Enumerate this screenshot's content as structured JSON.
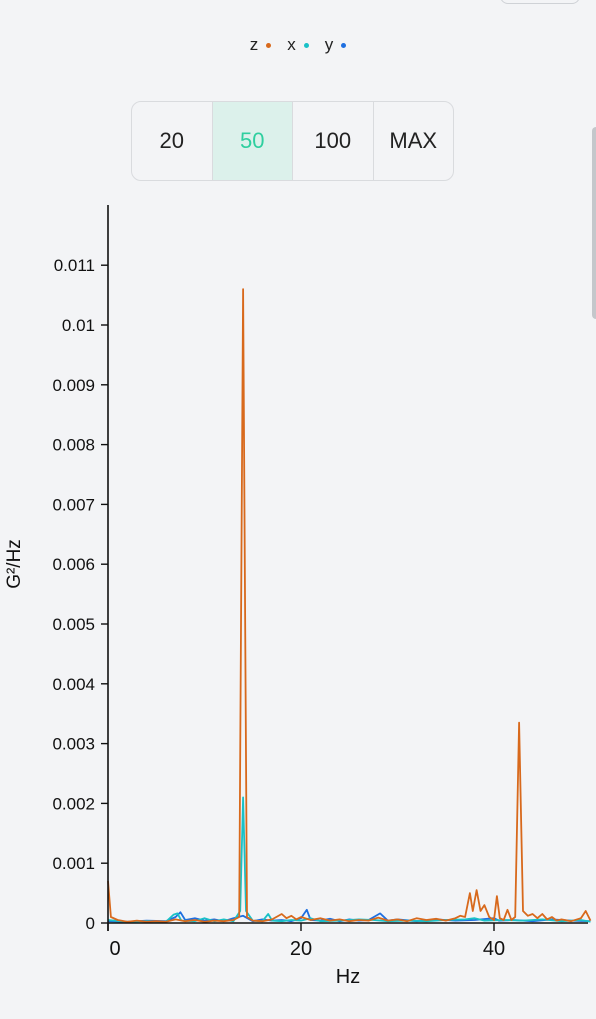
{
  "legend": [
    {
      "label": "z",
      "color": "#d8691c"
    },
    {
      "label": "x",
      "color": "#19c1c7"
    },
    {
      "label": "y",
      "color": "#1e6fe0"
    }
  ],
  "range_selector": {
    "options": [
      "20",
      "50",
      "100",
      "MAX"
    ],
    "selected": "50"
  },
  "chart_data": {
    "type": "line",
    "title": "",
    "xlabel": "Hz",
    "ylabel": "G²/Hz",
    "xlim": [
      0,
      50
    ],
    "ylim": [
      0,
      0.0117
    ],
    "xticks": [
      "0",
      "20",
      "40"
    ],
    "yticks": [
      "0",
      "0.001",
      "0.002",
      "0.003",
      "0.004",
      "0.005",
      "0.006",
      "0.007",
      "0.008",
      "0.009",
      "0.01",
      "0.011"
    ],
    "series": [
      {
        "name": "z",
        "color": "#d8691c",
        "points": [
          [
            0,
            0.0007
          ],
          [
            0.3,
            0.0001
          ],
          [
            1,
            5e-05
          ],
          [
            2,
            2e-05
          ],
          [
            3,
            4e-05
          ],
          [
            4,
            2e-05
          ],
          [
            5,
            3e-05
          ],
          [
            6,
            2e-05
          ],
          [
            7,
            6e-05
          ],
          [
            8,
            3e-05
          ],
          [
            9,
            5e-05
          ],
          [
            10,
            2e-05
          ],
          [
            11,
            4e-05
          ],
          [
            12,
            3e-05
          ],
          [
            13,
            5e-05
          ],
          [
            13.6,
            0.0001
          ],
          [
            14.0,
            0.0106
          ],
          [
            14.4,
            0.0001
          ],
          [
            15,
            4e-05
          ],
          [
            16,
            3e-05
          ],
          [
            17,
            6e-05
          ],
          [
            18,
            0.00015
          ],
          [
            18.5,
            8e-05
          ],
          [
            19,
            0.00012
          ],
          [
            19.5,
            6e-05
          ],
          [
            20,
            0.0001
          ],
          [
            21,
            5e-05
          ],
          [
            22,
            8e-05
          ],
          [
            23,
            4e-05
          ],
          [
            24,
            6e-05
          ],
          [
            25,
            3e-05
          ],
          [
            26,
            5e-05
          ],
          [
            27,
            4e-05
          ],
          [
            28,
            9e-05
          ],
          [
            29,
            4e-05
          ],
          [
            30,
            6e-05
          ],
          [
            31,
            3e-05
          ],
          [
            32,
            8e-05
          ],
          [
            33,
            5e-05
          ],
          [
            34,
            7e-05
          ],
          [
            35,
            4e-05
          ],
          [
            36,
            8e-05
          ],
          [
            36.5,
            0.00012
          ],
          [
            37,
            0.0001
          ],
          [
            37.5,
            0.0005
          ],
          [
            37.8,
            0.0002
          ],
          [
            38.2,
            0.00055
          ],
          [
            38.6,
            0.0002
          ],
          [
            39,
            0.0003
          ],
          [
            39.5,
            0.0001
          ],
          [
            40,
            5e-05
          ],
          [
            40.3,
            0.00045
          ],
          [
            40.6,
            8e-05
          ],
          [
            41,
            5e-05
          ],
          [
            41.4,
            0.00022
          ],
          [
            41.8,
            5e-05
          ],
          [
            42.2,
            0.0001
          ],
          [
            42.6,
            0.00335
          ],
          [
            43,
            0.0002
          ],
          [
            43.5,
            0.00012
          ],
          [
            44,
            0.00015
          ],
          [
            44.5,
            8e-05
          ],
          [
            45,
            0.00015
          ],
          [
            45.5,
            6e-05
          ],
          [
            46,
            0.0001
          ],
          [
            46.5,
            4e-05
          ],
          [
            47,
            6e-05
          ],
          [
            48,
            3e-05
          ],
          [
            49,
            8e-05
          ],
          [
            49.5,
            0.0002
          ],
          [
            50,
            4e-05
          ]
        ]
      },
      {
        "name": "x",
        "color": "#19c1c7",
        "points": [
          [
            0,
            5e-05
          ],
          [
            2,
            2e-05
          ],
          [
            4,
            3e-05
          ],
          [
            6,
            2e-05
          ],
          [
            6.8,
            0.00014
          ],
          [
            7.2,
            0.00016
          ],
          [
            7.6,
            4e-05
          ],
          [
            9,
            3e-05
          ],
          [
            10,
            8e-05
          ],
          [
            11,
            3e-05
          ],
          [
            12,
            6e-05
          ],
          [
            13,
            3e-05
          ],
          [
            13.7,
            0.0002
          ],
          [
            14.0,
            0.0021
          ],
          [
            14.3,
            0.0002
          ],
          [
            15,
            4e-05
          ],
          [
            16,
            3e-05
          ],
          [
            16.6,
            0.00015
          ],
          [
            17,
            4e-05
          ],
          [
            18,
            3e-05
          ],
          [
            19,
            5e-05
          ],
          [
            20,
            4e-05
          ],
          [
            21,
            8e-05
          ],
          [
            22,
            3e-05
          ],
          [
            24,
            4e-05
          ],
          [
            26,
            6e-05
          ],
          [
            27.5,
            5e-05
          ],
          [
            29,
            3e-05
          ],
          [
            31,
            4e-05
          ],
          [
            33,
            3e-05
          ],
          [
            35,
            5e-05
          ],
          [
            37,
            6e-05
          ],
          [
            38,
            8e-05
          ],
          [
            39,
            4e-05
          ],
          [
            41,
            5e-05
          ],
          [
            43,
            4e-05
          ],
          [
            45,
            6e-05
          ],
          [
            47,
            3e-05
          ],
          [
            49,
            5e-05
          ],
          [
            50,
            2e-05
          ]
        ]
      },
      {
        "name": "y",
        "color": "#1e6fe0",
        "points": [
          [
            0,
            3e-05
          ],
          [
            2,
            2e-05
          ],
          [
            4,
            4e-05
          ],
          [
            6,
            3e-05
          ],
          [
            7,
            0.0001
          ],
          [
            7.5,
            0.00018
          ],
          [
            8,
            5e-05
          ],
          [
            9,
            8e-05
          ],
          [
            10,
            4e-05
          ],
          [
            11,
            6e-05
          ],
          [
            12,
            3e-05
          ],
          [
            13,
            8e-05
          ],
          [
            14,
            0.00012
          ],
          [
            15,
            3e-05
          ],
          [
            16,
            6e-05
          ],
          [
            17,
            4e-05
          ],
          [
            18,
            5e-05
          ],
          [
            19,
            3e-05
          ],
          [
            20,
            8e-05
          ],
          [
            20.6,
            0.00022
          ],
          [
            21,
            5e-05
          ],
          [
            22,
            4e-05
          ],
          [
            23,
            7e-05
          ],
          [
            24,
            3e-05
          ],
          [
            25,
            6e-05
          ],
          [
            26,
            4e-05
          ],
          [
            27,
            5e-05
          ],
          [
            28.2,
            0.00016
          ],
          [
            29,
            4e-05
          ],
          [
            30,
            6e-05
          ],
          [
            32,
            3e-05
          ],
          [
            34,
            6e-05
          ],
          [
            36,
            4e-05
          ],
          [
            38,
            5e-05
          ],
          [
            40,
            8e-05
          ],
          [
            40.5,
            4e-05
          ],
          [
            42,
            5e-05
          ],
          [
            44,
            3e-05
          ],
          [
            46,
            6e-05
          ],
          [
            48,
            4e-05
          ],
          [
            50,
            3e-05
          ]
        ]
      }
    ]
  }
}
